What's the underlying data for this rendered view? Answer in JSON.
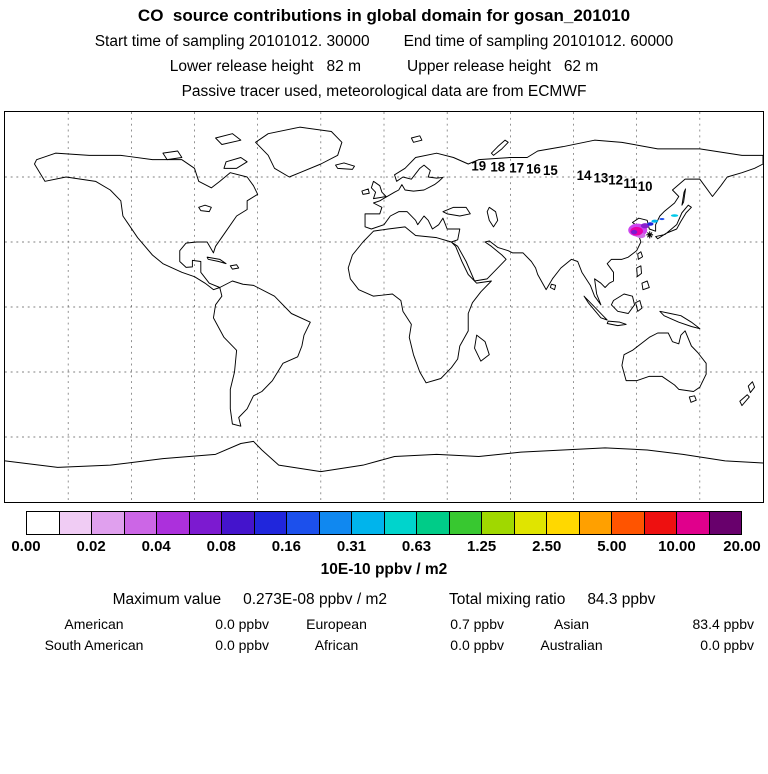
{
  "header": {
    "title": "CO  source contributions in global domain for gosan_201010",
    "start_time": "Start time of sampling 20101012. 30000",
    "end_time": "End time of sampling 20101012. 60000",
    "lower_release": "Lower release height   82 m",
    "upper_release": "Upper release height   62 m",
    "tracer_line": "Passive tracer used, meteorological data are from ECMWF"
  },
  "chart_data": {
    "type": "heatmap",
    "title": "CO  source contributions in global domain for gosan_201010",
    "map": {
      "projection": "equirectangular",
      "lon_min": -180,
      "lon_max": 180,
      "lat_min": -90,
      "lat_max": 90,
      "grid": {
        "lon_step": 30,
        "lat_step": 30,
        "style": "dashed"
      }
    },
    "colorbar": {
      "units": "10E-10 ppbv / m2",
      "ticks": [
        "0.00",
        "0.02",
        "0.04",
        "0.08",
        "0.16",
        "0.31",
        "0.63",
        "1.25",
        "2.50",
        "5.00",
        "10.00",
        "20.00"
      ],
      "colors": [
        "#ffffff",
        "#f0ccf4",
        "#e0a0ee",
        "#cc66e6",
        "#ac30dc",
        "#7c1ad0",
        "#4414cc",
        "#2026dc",
        "#1c50ec",
        "#1088f0",
        "#00b4ec",
        "#00d4cc",
        "#00cc88",
        "#38c830",
        "#a0d800",
        "#e0e400",
        "#ffd800",
        "#ffa000",
        "#ff5400",
        "#ee1010",
        "#e0008c",
        "#68006c"
      ]
    },
    "trajectory_markers": [
      {
        "label": "19",
        "lon": 45,
        "lat": 63
      },
      {
        "label": "18",
        "lon": 54,
        "lat": 62.5
      },
      {
        "label": "17",
        "lon": 63,
        "lat": 62
      },
      {
        "label": "16",
        "lon": 71,
        "lat": 61.5
      },
      {
        "label": "15",
        "lon": 79,
        "lat": 61
      },
      {
        "label": "14",
        "lon": 95,
        "lat": 58.5
      },
      {
        "label": "13",
        "lon": 103,
        "lat": 57.5
      },
      {
        "label": "12",
        "lon": 110,
        "lat": 56.5
      },
      {
        "label": "11",
        "lon": 117,
        "lat": 55
      },
      {
        "label": "10",
        "lon": 124,
        "lat": 53.5
      }
    ],
    "plume": [
      {
        "lon": 120.5,
        "lat": 35.5,
        "rx": 4.5,
        "ry": 3.0,
        "color": "#cc44ee"
      },
      {
        "lon": 122.0,
        "lat": 33.0,
        "rx": 2.2,
        "ry": 1.2,
        "color": "#d070e8"
      },
      {
        "lon": 120.0,
        "lat": 35.0,
        "rx": 3.0,
        "ry": 2.0,
        "color": "#e800a8"
      },
      {
        "lon": 118.8,
        "lat": 34.6,
        "rx": 1.5,
        "ry": 1.0,
        "color": "#7c1ad0"
      },
      {
        "lon": 124.0,
        "lat": 37.5,
        "rx": 2.0,
        "ry": 1.2,
        "color": "#8820cc"
      },
      {
        "lon": 126.5,
        "lat": 38.3,
        "rx": 1.5,
        "ry": 0.8,
        "color": "#2026dc"
      },
      {
        "lon": 128.6,
        "lat": 39.6,
        "rx": 1.6,
        "ry": 0.7,
        "color": "#00b4ec"
      },
      {
        "lon": 132.0,
        "lat": 40.6,
        "rx": 1.2,
        "ry": 0.5,
        "color": "#2050ec"
      },
      {
        "lon": 138.0,
        "lat": 42.2,
        "rx": 1.7,
        "ry": 0.6,
        "color": "#00c8e8"
      }
    ],
    "receptor": {
      "lon": 126.2,
      "lat": 33.3
    },
    "maximum_value_ppbv_per_m2": "0.273E-08",
    "total_mixing_ratio_ppbv": 84.3,
    "region_contributions_ppbv": {
      "American": 0.0,
      "European": 0.7,
      "Asian": 83.4,
      "South American": 0.0,
      "African": 0.0,
      "Australian": 0.0
    }
  },
  "stats": {
    "max_label": "Maximum value",
    "max_value": "0.273E-08 ppbv / m2",
    "total_label": "Total mixing ratio",
    "total_value": "84.3 ppbv",
    "regions": [
      {
        "name": "American",
        "value": "0.0 ppbv"
      },
      {
        "name": "European",
        "value": "0.7 ppbv"
      },
      {
        "name": "Asian",
        "value": "83.4 ppbv"
      },
      {
        "name": "South American",
        "value": "0.0 ppbv"
      },
      {
        "name": "African",
        "value": "0.0 ppbv"
      },
      {
        "name": "Australian",
        "value": "0.0 ppbv"
      }
    ]
  }
}
